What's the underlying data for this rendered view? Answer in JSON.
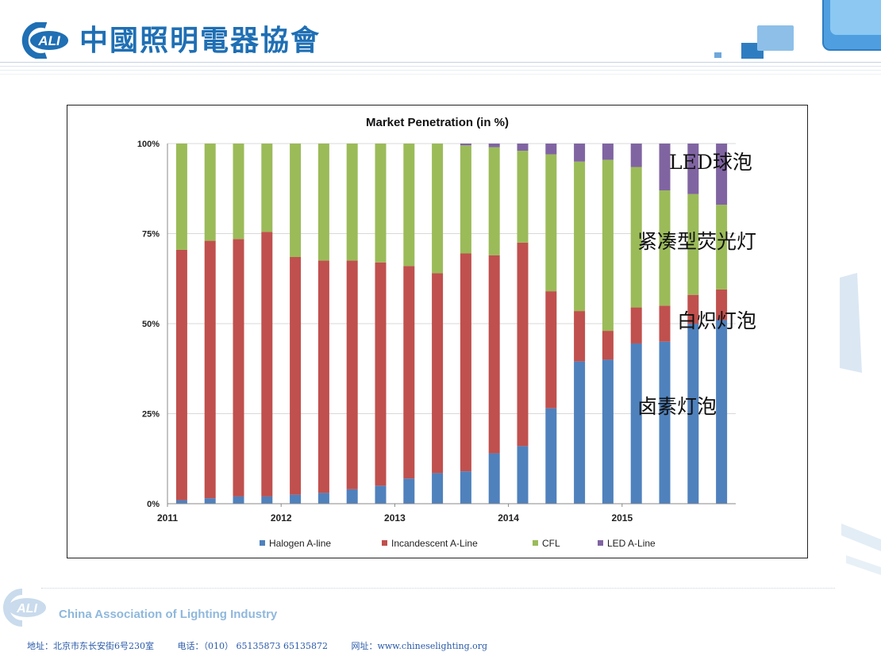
{
  "header": {
    "logo_text": "ALI",
    "org_name_cn": "中國照明電器協會"
  },
  "chart_data": {
    "type": "bar",
    "stacked": true,
    "title": "Market Penetration (in %)",
    "ylim": [
      0,
      100
    ],
    "y_ticks": [
      "0%",
      "25%",
      "50%",
      "75%",
      "100%"
    ],
    "x_year_labels": [
      "2011",
      "2012",
      "2013",
      "2014",
      "2015"
    ],
    "bars_per_year": 4,
    "grid": true,
    "legend_position": "bottom",
    "series": [
      {
        "name": "Halogen A-line",
        "color": "#4f81bd",
        "values": [
          1,
          1.5,
          2,
          2,
          2.5,
          3,
          4,
          5,
          7,
          8.5,
          9,
          14,
          16,
          26.5,
          39.5,
          40,
          44.5,
          45,
          50,
          51
        ]
      },
      {
        "name": "Incandescent A-Line",
        "color": "#c0504d",
        "values": [
          69.5,
          71.5,
          71.5,
          73.5,
          66,
          64.5,
          63.5,
          62,
          59,
          55.5,
          60.5,
          55,
          56.5,
          32.5,
          14,
          8,
          10,
          10,
          8,
          8.5
        ]
      },
      {
        "name": "CFL",
        "color": "#9bbb59",
        "values": [
          29.5,
          27,
          26.5,
          24.5,
          31.5,
          32.5,
          32.5,
          33,
          34,
          36,
          30,
          30,
          25.5,
          38,
          41.5,
          47.5,
          39,
          32,
          28,
          23.5
        ]
      },
      {
        "name": "LED A-Line",
        "color": "#8064a2",
        "values": [
          0,
          0,
          0,
          0,
          0,
          0,
          0,
          0,
          0,
          0,
          0.5,
          1,
          2,
          3,
          5,
          4.5,
          6.5,
          13,
          14,
          17
        ]
      }
    ]
  },
  "annotations": {
    "led": "LED球泡",
    "cfl": "紧凑型荧光灯",
    "incandescent": "白炽灯泡",
    "halogen": "卤素灯泡"
  },
  "footer": {
    "logo_text": "ALI",
    "org_name_en": "China Association of Lighting Industry",
    "address": "地址：北京市东长安街6号230室",
    "phone": "电话：（010） 65135873 65135872",
    "website": "网址：www.chineselighting.org"
  },
  "colors": {
    "brand_blue": "#1f6fb4",
    "halogen": "#4f81bd",
    "incandescent": "#c0504d",
    "cfl": "#9bbb59",
    "led": "#8064a2"
  }
}
